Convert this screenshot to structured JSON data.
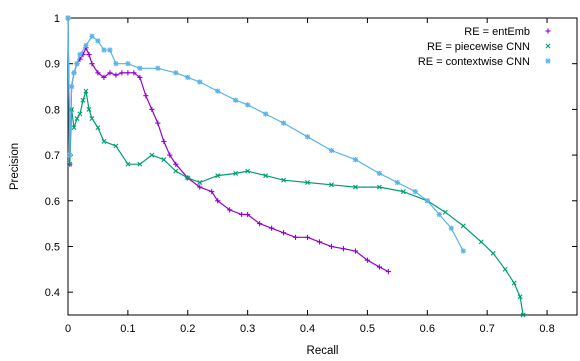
{
  "chart_data": {
    "type": "line",
    "title": "",
    "xlabel": "Recall",
    "ylabel": "Precision",
    "xlim": [
      0,
      0.85
    ],
    "ylim": [
      0.35,
      1.0
    ],
    "x_ticks": [
      0,
      0.1,
      0.2,
      0.3,
      0.4,
      0.5,
      0.6,
      0.7,
      0.8
    ],
    "y_ticks": [
      0.4,
      0.5,
      0.6,
      0.7,
      0.8,
      0.9,
      1
    ],
    "x_tick_labels": [
      "0",
      "0.1",
      "0.2",
      "0.3",
      "0.4",
      "0.5",
      "0.6",
      "0.7",
      "0.8"
    ],
    "y_tick_labels": [
      "0.4",
      "0.5",
      "0.6",
      "0.7",
      "0.8",
      "0.9",
      "1"
    ],
    "grid": false,
    "legend_position": "top-right",
    "series": [
      {
        "name": "RE = entEmb",
        "color": "#9400d3",
        "marker": "plus",
        "x": [
          0.0,
          0.003,
          0.006,
          0.01,
          0.015,
          0.02,
          0.025,
          0.03,
          0.035,
          0.04,
          0.05,
          0.06,
          0.07,
          0.08,
          0.09,
          0.1,
          0.11,
          0.12,
          0.13,
          0.14,
          0.15,
          0.16,
          0.17,
          0.18,
          0.2,
          0.22,
          0.24,
          0.25,
          0.27,
          0.29,
          0.3,
          0.32,
          0.34,
          0.36,
          0.38,
          0.4,
          0.42,
          0.44,
          0.46,
          0.48,
          0.5,
          0.52,
          0.535
        ],
        "y": [
          1.0,
          0.68,
          0.85,
          0.88,
          0.9,
          0.91,
          0.92,
          0.935,
          0.92,
          0.9,
          0.88,
          0.87,
          0.88,
          0.875,
          0.88,
          0.88,
          0.88,
          0.87,
          0.83,
          0.8,
          0.77,
          0.73,
          0.7,
          0.68,
          0.65,
          0.63,
          0.62,
          0.6,
          0.58,
          0.57,
          0.57,
          0.55,
          0.54,
          0.53,
          0.52,
          0.52,
          0.51,
          0.5,
          0.495,
          0.49,
          0.47,
          0.455,
          0.445
        ]
      },
      {
        "name": "RE = piecewise CNN",
        "color": "#009e73",
        "marker": "cross",
        "x": [
          0.0,
          0.003,
          0.006,
          0.01,
          0.015,
          0.02,
          0.025,
          0.03,
          0.035,
          0.04,
          0.05,
          0.06,
          0.08,
          0.1,
          0.12,
          0.14,
          0.16,
          0.18,
          0.2,
          0.22,
          0.25,
          0.28,
          0.3,
          0.33,
          0.36,
          0.4,
          0.44,
          0.48,
          0.52,
          0.56,
          0.6,
          0.63,
          0.66,
          0.69,
          0.71,
          0.73,
          0.745,
          0.755,
          0.76
        ],
        "y": [
          1.0,
          0.68,
          0.8,
          0.76,
          0.78,
          0.79,
          0.82,
          0.84,
          0.8,
          0.78,
          0.76,
          0.73,
          0.72,
          0.68,
          0.68,
          0.7,
          0.69,
          0.665,
          0.65,
          0.64,
          0.655,
          0.66,
          0.665,
          0.655,
          0.645,
          0.64,
          0.635,
          0.63,
          0.63,
          0.62,
          0.6,
          0.575,
          0.545,
          0.51,
          0.485,
          0.45,
          0.42,
          0.39,
          0.35
        ]
      },
      {
        "name": "RE = contextwise CNN",
        "color": "#56b4e9",
        "marker": "star",
        "x": [
          0.0,
          0.003,
          0.006,
          0.01,
          0.015,
          0.02,
          0.03,
          0.04,
          0.05,
          0.06,
          0.07,
          0.08,
          0.1,
          0.12,
          0.15,
          0.18,
          0.2,
          0.22,
          0.25,
          0.28,
          0.3,
          0.33,
          0.36,
          0.4,
          0.44,
          0.48,
          0.52,
          0.55,
          0.58,
          0.6,
          0.62,
          0.64,
          0.66
        ],
        "y": [
          1.0,
          0.7,
          0.85,
          0.88,
          0.9,
          0.92,
          0.94,
          0.96,
          0.95,
          0.93,
          0.93,
          0.9,
          0.9,
          0.89,
          0.89,
          0.88,
          0.87,
          0.86,
          0.84,
          0.82,
          0.81,
          0.79,
          0.77,
          0.74,
          0.71,
          0.69,
          0.66,
          0.64,
          0.62,
          0.6,
          0.57,
          0.54,
          0.49
        ]
      }
    ]
  }
}
